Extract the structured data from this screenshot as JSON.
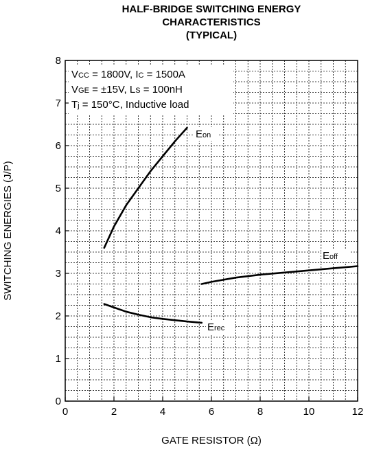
{
  "chart_data": {
    "type": "line",
    "title": "HALF-BRIDGE SWITCHING ENERGY",
    "title_line2": "CHARACTERISTICS",
    "title_line3": "(TYPICAL)",
    "xlabel": "GATE RESISTOR (Ω)",
    "ylabel": "SWITCHING ENERGIES (J/P)",
    "xlim": [
      0,
      12
    ],
    "ylim": [
      0,
      8
    ],
    "x_ticks": [
      "0",
      "2",
      "4",
      "6",
      "8",
      "10",
      "12"
    ],
    "y_ticks": [
      "0",
      "1",
      "2",
      "3",
      "4",
      "5",
      "6",
      "7",
      "8"
    ],
    "grid": true,
    "conditions": [
      {
        "main": "V",
        "sub": "CC",
        "rest": " = 1800V, I",
        "sub2": "C",
        "rest2": " = 1500A"
      },
      {
        "main": "V",
        "sub": "GE",
        "rest": " = ±15V, L",
        "sub2": "S",
        "rest2": " = 100nH"
      },
      {
        "main": "T",
        "sub": "j",
        "rest": " = 150°C, Inductive load",
        "sub2": "",
        "rest2": ""
      }
    ],
    "series": [
      {
        "name": "Eon",
        "label_main": "E",
        "label_sub": "on",
        "x": [
          1.6,
          2.0,
          2.5,
          3.0,
          3.5,
          4.0,
          4.5,
          5.0
        ],
        "y": [
          3.6,
          4.1,
          4.6,
          5.0,
          5.4,
          5.75,
          6.1,
          6.42
        ]
      },
      {
        "name": "Eoff",
        "label_main": "E",
        "label_sub": "off",
        "x": [
          5.6,
          6.0,
          7.0,
          8.0,
          9.0,
          10.0,
          11.0,
          12.0
        ],
        "y": [
          2.75,
          2.8,
          2.9,
          2.97,
          3.02,
          3.07,
          3.12,
          3.17
        ]
      },
      {
        "name": "Erec",
        "label_main": "E",
        "label_sub": "rec",
        "x": [
          1.6,
          2.0,
          2.5,
          3.0,
          3.5,
          4.0,
          4.5,
          5.0,
          5.6
        ],
        "y": [
          2.28,
          2.2,
          2.1,
          2.03,
          1.97,
          1.93,
          1.9,
          1.87,
          1.84
        ]
      }
    ]
  }
}
